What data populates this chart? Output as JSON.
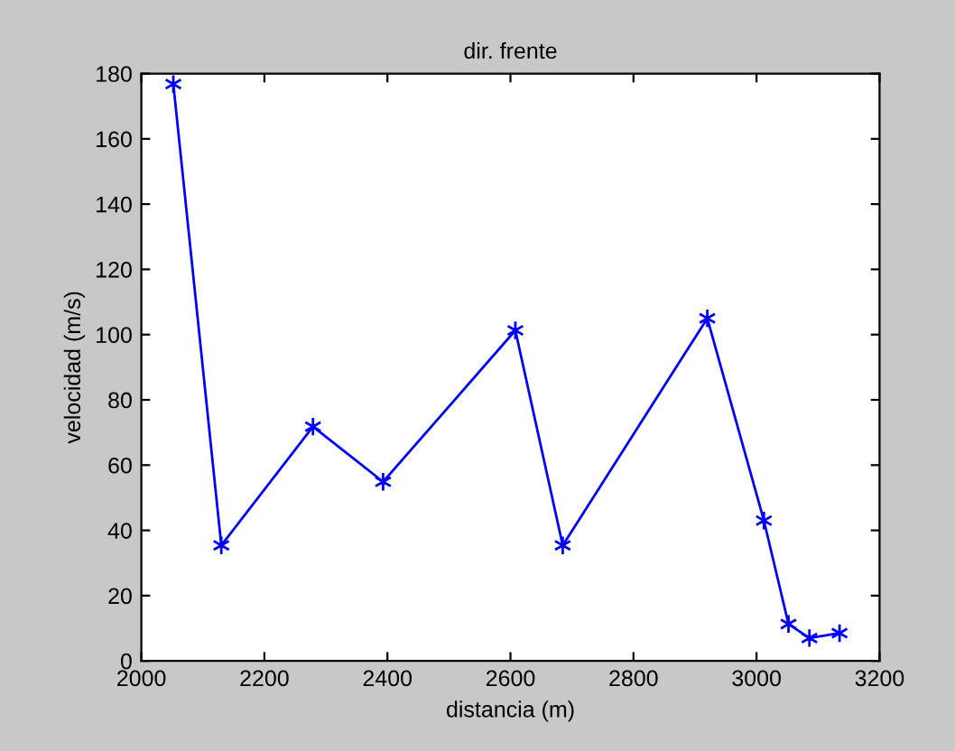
{
  "chart_data": {
    "type": "line",
    "title": "dir. frente",
    "xlabel": "distancia (m)",
    "ylabel": "velocidad (m/s)",
    "x": [
      2052,
      2130,
      2279,
      2393,
      2608,
      2685,
      2920,
      3012,
      3052,
      3086,
      3135
    ],
    "series": [
      {
        "color": "#0000ff",
        "values": [
          176.8,
          35.4,
          71.8,
          54.9,
          101.3,
          35.4,
          105.0,
          43.0,
          11.3,
          7.0,
          8.5
        ]
      }
    ],
    "xlim": [
      2000,
      3200
    ],
    "ylim": [
      0,
      180
    ],
    "xticks": [
      2000,
      2200,
      2400,
      2600,
      2800,
      3000,
      3200
    ],
    "yticks": [
      0,
      20,
      40,
      60,
      80,
      100,
      120,
      140,
      160,
      180
    ],
    "marker": "cross",
    "line_style": "solid",
    "grid": false,
    "legend": false
  }
}
